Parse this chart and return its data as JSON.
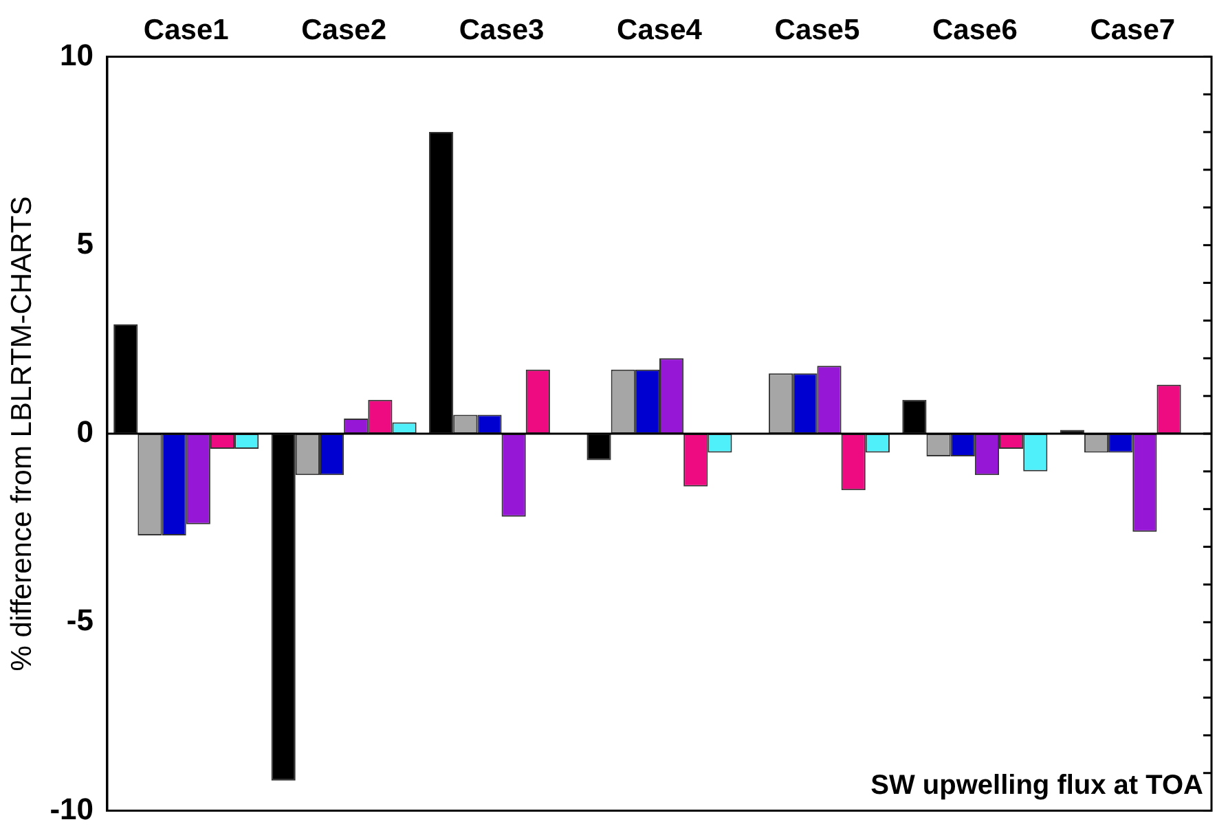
{
  "chart_data": {
    "type": "bar",
    "categories": [
      "Case1",
      "Case2",
      "Case3",
      "Case4",
      "Case5",
      "Case6",
      "Case7"
    ],
    "series": [
      {
        "color": "#000000",
        "values": [
          2.9,
          -9.2,
          8.0,
          -0.7,
          0,
          0.9,
          0.1
        ]
      },
      {
        "color": "#a6a6a6",
        "values": [
          -2.7,
          -1.1,
          0.5,
          1.7,
          1.6,
          -0.6,
          -0.5
        ]
      },
      {
        "color": "#0000d0",
        "values": [
          -2.7,
          -1.1,
          0.5,
          1.7,
          1.6,
          -0.6,
          -0.5
        ]
      },
      {
        "color": "#9618d6",
        "values": [
          -2.4,
          0.4,
          -2.2,
          2.0,
          1.8,
          -1.1,
          -2.6
        ]
      },
      {
        "color": "#ee0a80",
        "values": [
          -0.4,
          0.9,
          1.7,
          -1.4,
          -1.5,
          -0.4,
          1.3
        ]
      },
      {
        "color": "#50f0fa",
        "values": [
          -0.4,
          0.3,
          0,
          -0.5,
          -0.5,
          -1.0,
          0
        ]
      }
    ],
    "ylabel": "% difference from LBLRTM-CHARTS",
    "ylim": [
      -10,
      10
    ],
    "yticks": [
      -10,
      {
        "value": -9,
        "label": null
      },
      {
        "value": -8,
        "label": null
      },
      {
        "value": -7,
        "label": null
      },
      {
        "value": -6,
        "label": null
      },
      -5,
      {
        "value": -4,
        "label": null
      },
      {
        "value": -3,
        "label": null
      },
      {
        "value": -2,
        "label": null
      },
      {
        "value": -1,
        "label": null
      },
      0,
      {
        "value": 1,
        "label": null
      },
      {
        "value": 2,
        "label": null
      },
      {
        "value": 3,
        "label": null
      },
      {
        "value": 4,
        "label": null
      },
      5,
      {
        "value": 6,
        "label": null
      },
      {
        "value": 7,
        "label": null
      },
      {
        "value": 8,
        "label": null
      },
      {
        "value": 9,
        "label": null
      },
      10
    ],
    "ref_lines": [
      {
        "axis": "y",
        "value": 0,
        "color": "#000000"
      }
    ],
    "annotations": [
      "SW upwelling flux at TOA"
    ]
  }
}
